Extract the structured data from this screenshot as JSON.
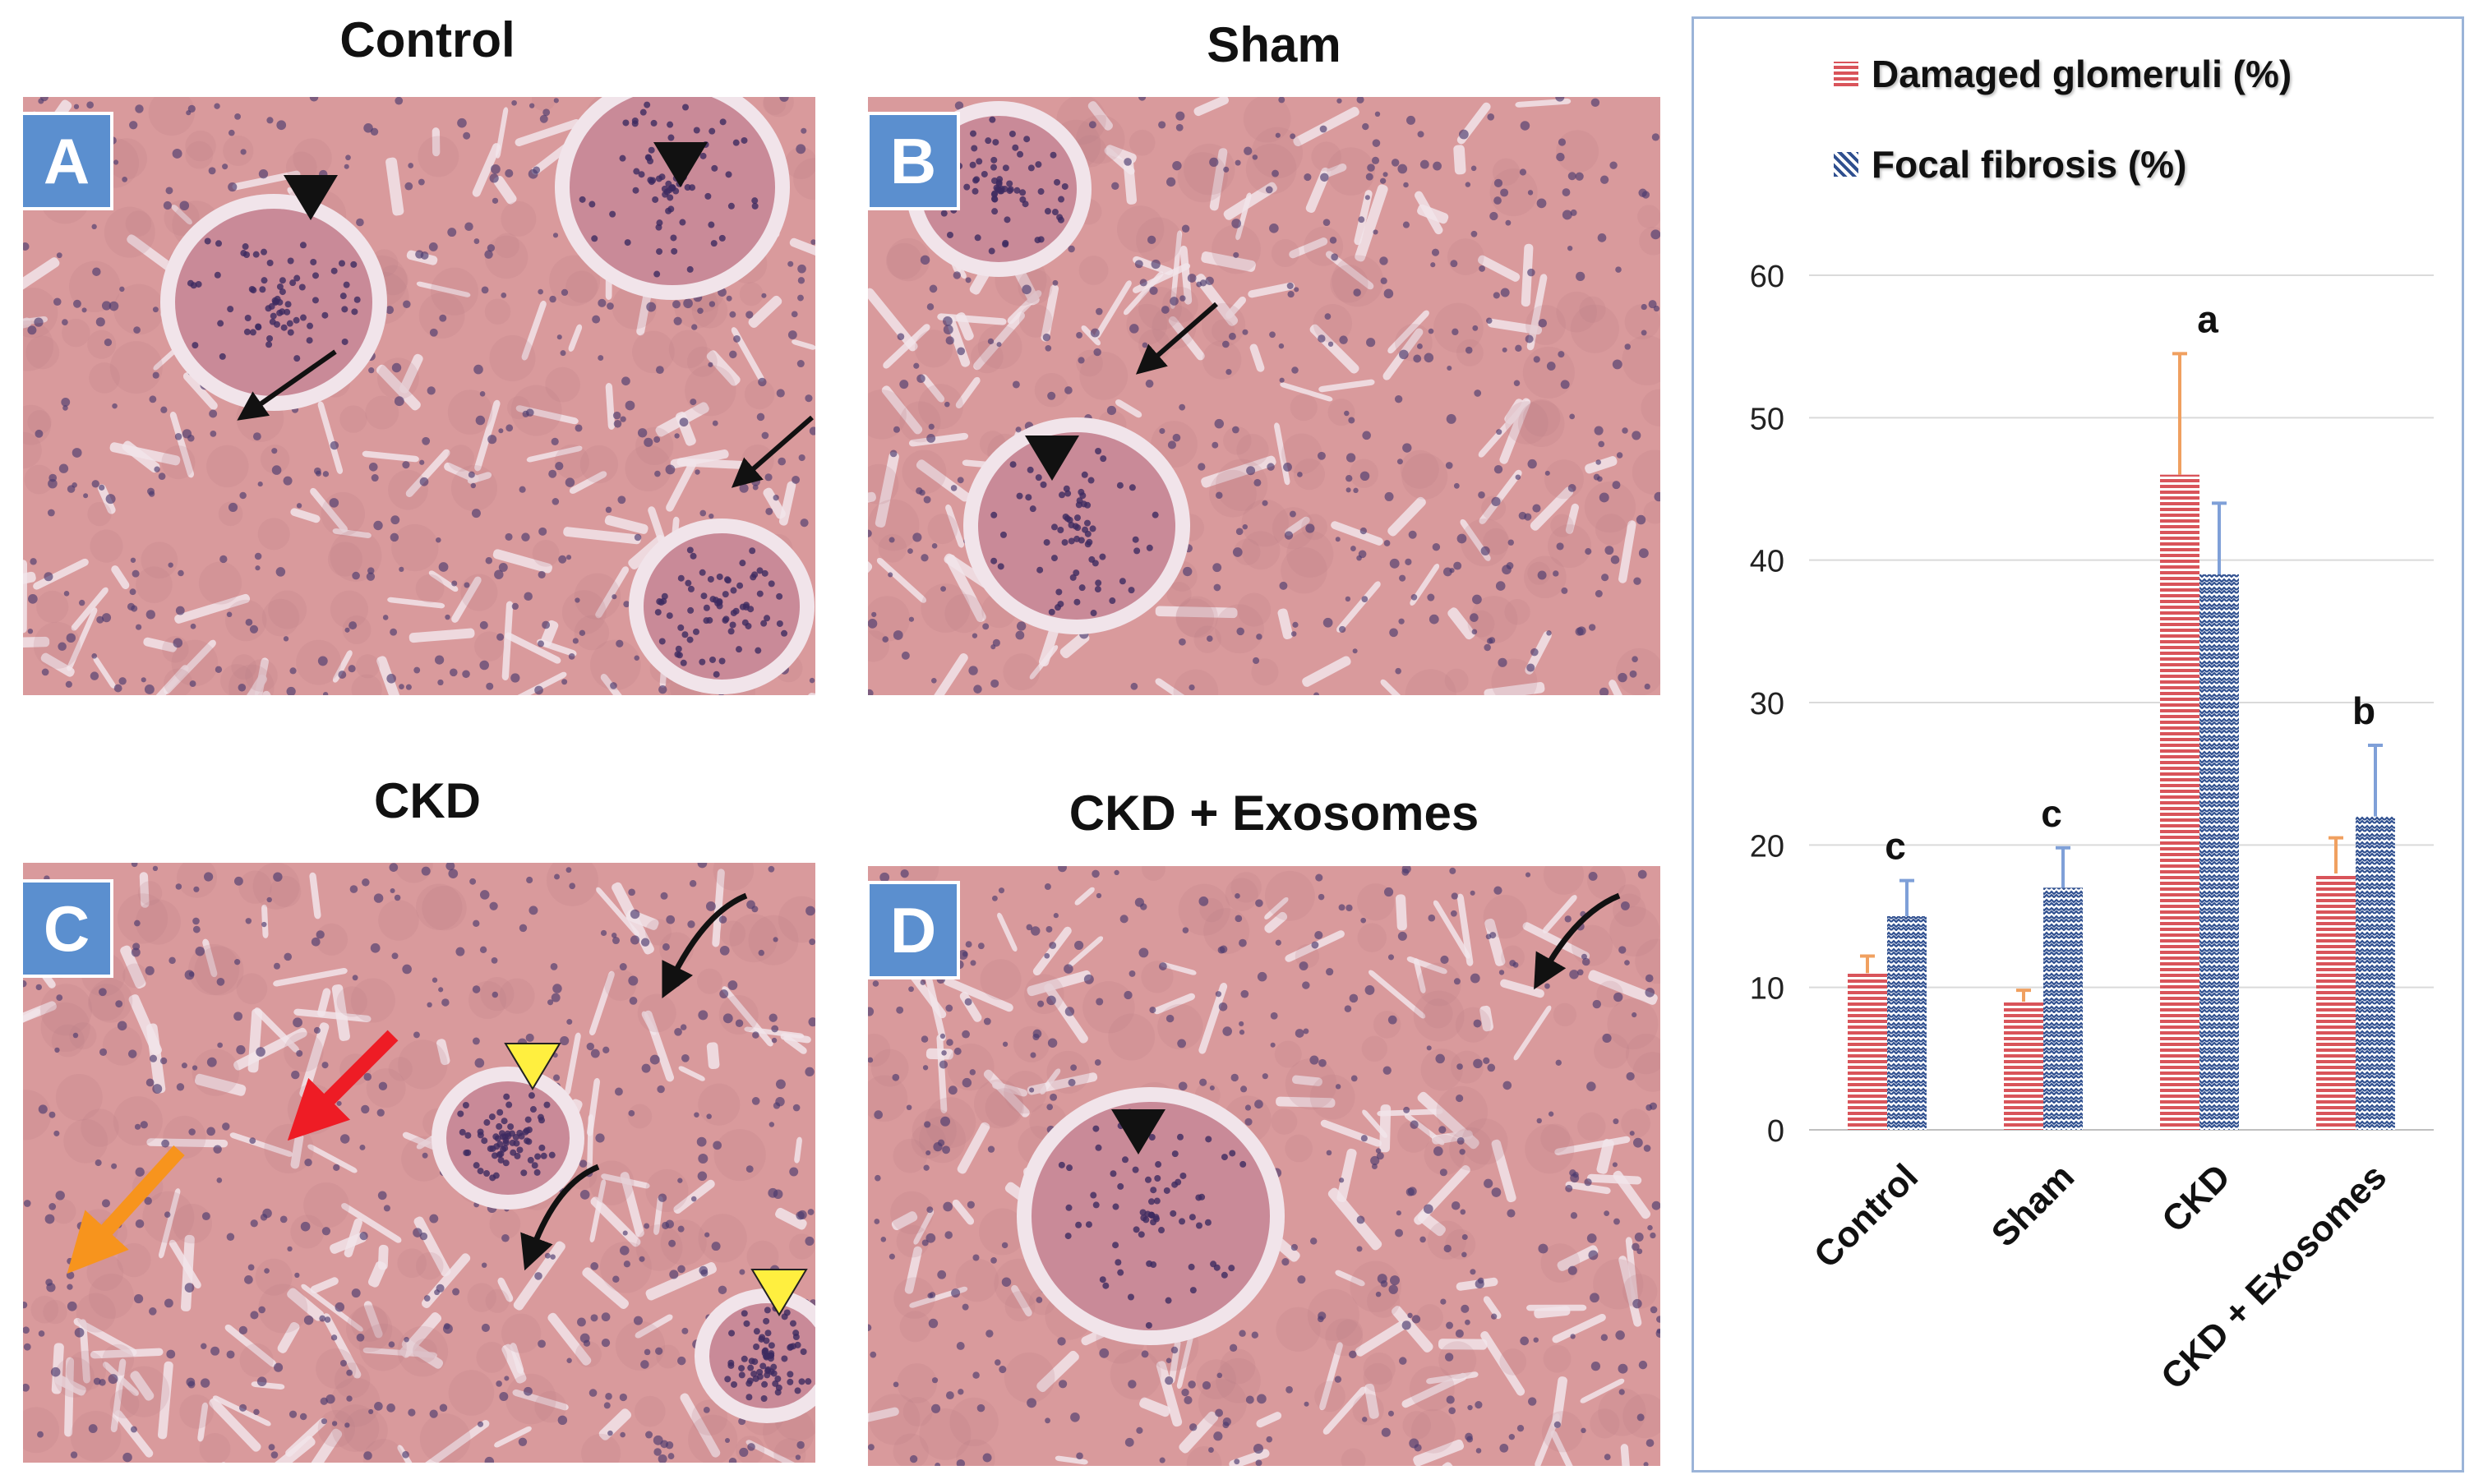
{
  "panels": [
    {
      "letter": "A",
      "title": "Control"
    },
    {
      "letter": "B",
      "title": "Sham"
    },
    {
      "letter": "C",
      "title": "CKD"
    },
    {
      "letter": "D",
      "title": "CKD + Exosomes"
    }
  ],
  "colors": {
    "tissue": "#d99a9c",
    "tissue_dark": "#b77b86",
    "nuclei": "#4b3a6e",
    "lumen": "#f1e4ea",
    "panel_letter_bg": "#5b8fcf",
    "series_damaged": "#d9545a",
    "series_fibrosis": "#2f4f8f",
    "error_damaged": "#f0a060",
    "error_fibrosis": "#7fa0d8",
    "arrow_black": "#111111",
    "arrow_red": "#ee1c25",
    "arrow_orange": "#f7941d",
    "arrowhead_yellow": "#ffef3f"
  },
  "chart_data": {
    "type": "bar",
    "categories": [
      "Control",
      "Sham",
      "CKD",
      "CKD + Exosomes"
    ],
    "series": [
      {
        "name": "Damaged glomeruli (%)",
        "values": [
          11,
          9,
          46,
          18
        ],
        "errors": [
          1.2,
          0.8,
          8.5,
          2.5
        ]
      },
      {
        "name": "Focal fibrosis (%)",
        "values": [
          15,
          17,
          39,
          22
        ],
        "errors": [
          2.5,
          2.8,
          5,
          5
        ]
      }
    ],
    "significance": [
      "c",
      "c",
      "a",
      "b"
    ],
    "yticks": [
      "0",
      "10",
      "20",
      "30",
      "40",
      "50",
      "60"
    ],
    "ylim": [
      0,
      60
    ],
    "grid": true,
    "legend": "top"
  }
}
